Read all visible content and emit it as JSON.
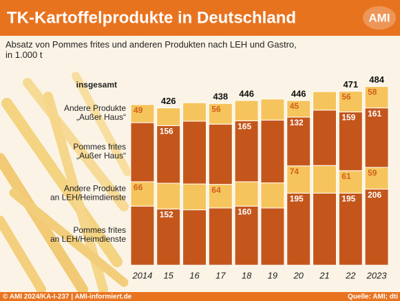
{
  "chart_data": {
    "type": "stacked-bar",
    "title": "TK-Kartoffelprodukte in Deutschland",
    "logo": "AMI",
    "subtitle": "Absatz von Pommes frites und anderen Produkten nach LEH und Gastro,\nin 1.000 t",
    "total_label": "insgesamt",
    "categories": [
      "2014",
      "15",
      "16",
      "17",
      "18",
      "19",
      "20",
      "21",
      "22",
      "2023"
    ],
    "totals": [
      null,
      426,
      null,
      438,
      446,
      null,
      446,
      null,
      471,
      484
    ],
    "series": [
      {
        "name": "Pommes frites\nan LEH/Heimdienste",
        "color": "#c4561c",
        "values": [
          160,
          152,
          150,
          155,
          160,
          155,
          195,
          195,
          195,
          206
        ],
        "value_labels": [
          null,
          "152",
          null,
          null,
          "160",
          null,
          "195",
          null,
          "195",
          "206"
        ]
      },
      {
        "name": "Andere Produkte\nan LEH/Heimdienste",
        "color": "#f6c45c",
        "values": [
          66,
          70,
          70,
          64,
          66,
          68,
          74,
          75,
          61,
          59
        ],
        "value_labels": [
          "66",
          null,
          null,
          "64",
          null,
          null,
          "74",
          null,
          "61",
          "59"
        ]
      },
      {
        "name": "Pommes frites\n„Außer Haus“",
        "color": "#c4561c",
        "values": [
          160,
          156,
          170,
          163,
          165,
          170,
          132,
          150,
          159,
          161
        ],
        "value_labels": [
          null,
          "156",
          null,
          null,
          "165",
          null,
          "132",
          null,
          "159",
          "161"
        ]
      },
      {
        "name": "Andere Produkte\n„Außer Haus“",
        "color": "#f6c45c",
        "values": [
          49,
          48,
          50,
          56,
          55,
          57,
          45,
          50,
          56,
          58
        ],
        "value_labels": [
          "49",
          null,
          null,
          "56",
          null,
          null,
          "45",
          null,
          "56",
          "58"
        ]
      }
    ],
    "ylim": [
      0,
      500
    ],
    "footer_left": "© AMI 2024/KA-I-237 | AMI-informiert.de",
    "footer_right": "Quelle: AMI; dti"
  }
}
